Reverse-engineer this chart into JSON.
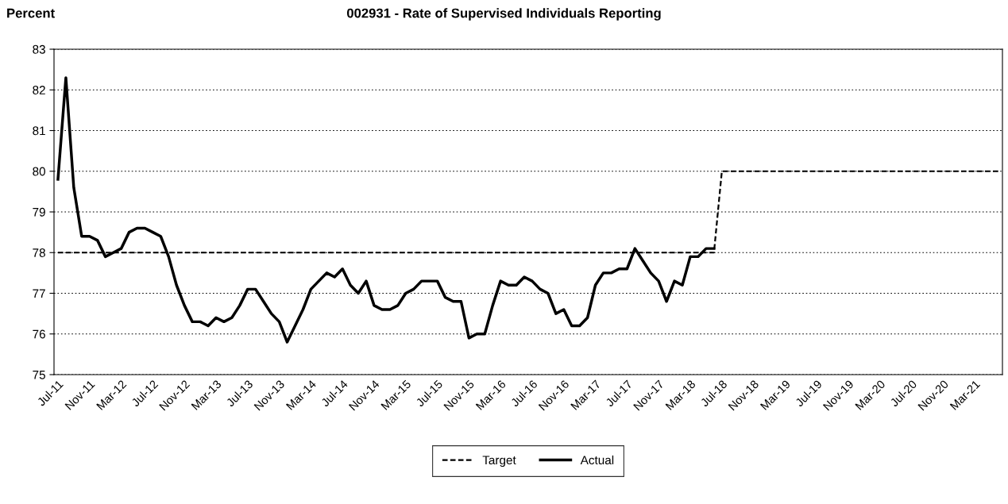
{
  "chart_data": {
    "type": "line",
    "title": "002931 - Rate of Supervised Individuals Reporting",
    "ylabel": "Percent",
    "categories": [
      "Jul-11",
      null,
      null,
      null,
      "Nov-11",
      null,
      null,
      null,
      "Mar-12",
      null,
      null,
      null,
      "Jul-12",
      null,
      null,
      null,
      "Nov-12",
      null,
      null,
      null,
      "Mar-13",
      null,
      null,
      null,
      "Jul-13",
      null,
      null,
      null,
      "Nov-13",
      null,
      null,
      null,
      "Mar-14",
      null,
      null,
      null,
      "Jul-14",
      null,
      null,
      null,
      "Nov-14",
      null,
      null,
      null,
      "Mar-15",
      null,
      null,
      null,
      "Jul-15",
      null,
      null,
      null,
      "Nov-15",
      null,
      null,
      null,
      "Mar-16",
      null,
      null,
      null,
      "Jul-16",
      null,
      null,
      null,
      "Nov-16",
      null,
      null,
      null,
      "Mar-17",
      null,
      null,
      null,
      "Jul-17",
      null,
      null,
      null,
      "Nov-17",
      null,
      null,
      null,
      "Mar-18",
      null,
      null,
      null,
      "Jul-18",
      null,
      null,
      null,
      "Nov-18",
      null,
      null,
      null,
      "Mar-19",
      null,
      null,
      null,
      "Jul-19",
      null,
      null,
      null,
      "Nov-19",
      null,
      null,
      null,
      "Mar-20",
      null,
      null,
      null,
      "Jul-20",
      null,
      null,
      null,
      "Nov-20",
      null,
      null,
      null,
      "Mar-21",
      null,
      null,
      null
    ],
    "series": [
      {
        "name": "Target",
        "color": "#000000",
        "line_style": "dashed",
        "values": [
          78,
          78,
          78,
          78,
          78,
          78,
          78,
          78,
          78,
          78,
          78,
          78,
          78,
          78,
          78,
          78,
          78,
          78,
          78,
          78,
          78,
          78,
          78,
          78,
          78,
          78,
          78,
          78,
          78,
          78,
          78,
          78,
          78,
          78,
          78,
          78,
          78,
          78,
          78,
          78,
          78,
          78,
          78,
          78,
          78,
          78,
          78,
          78,
          78,
          78,
          78,
          78,
          78,
          78,
          78,
          78,
          78,
          78,
          78,
          78,
          78,
          78,
          78,
          78,
          78,
          78,
          78,
          78,
          78,
          78,
          78,
          78,
          78,
          78,
          78,
          78,
          78,
          78,
          78,
          78,
          78,
          78,
          78,
          78,
          80,
          80,
          80,
          80,
          80,
          80,
          80,
          80,
          80,
          80,
          80,
          80,
          80,
          80,
          80,
          80,
          80,
          80,
          80,
          80,
          80,
          80,
          80,
          80,
          80,
          80,
          80,
          80,
          80,
          80,
          80,
          80,
          80,
          80,
          80,
          80
        ]
      },
      {
        "name": "Actual",
        "color": "#000000",
        "line_style": "solid",
        "values": [
          79.8,
          82.3,
          79.6,
          78.4,
          78.4,
          78.3,
          77.9,
          78.0,
          78.1,
          78.5,
          78.6,
          78.6,
          78.5,
          78.4,
          77.9,
          77.2,
          76.7,
          76.3,
          76.3,
          76.2,
          76.4,
          76.3,
          76.4,
          76.7,
          77.1,
          77.1,
          76.8,
          76.5,
          76.3,
          75.8,
          76.2,
          76.6,
          77.1,
          77.3,
          77.5,
          77.4,
          77.6,
          77.2,
          77.0,
          77.3,
          76.7,
          76.6,
          76.6,
          76.7,
          77.0,
          77.1,
          77.3,
          77.3,
          77.3,
          76.9,
          76.8,
          76.8,
          75.9,
          76.0,
          76.0,
          76.7,
          77.3,
          77.2,
          77.2,
          77.4,
          77.3,
          77.1,
          77.0,
          76.5,
          76.6,
          76.2,
          76.2,
          76.4,
          77.2,
          77.5,
          77.5,
          77.6,
          77.6,
          78.1,
          77.8,
          77.5,
          77.3,
          76.8,
          77.3,
          77.2,
          77.9,
          77.9,
          78.1,
          78.1,
          null,
          null,
          null,
          null,
          null,
          null,
          null,
          null,
          null,
          null,
          null,
          null,
          null,
          null,
          null,
          null,
          null,
          null,
          null,
          null,
          null,
          null,
          null,
          null,
          null,
          null,
          null,
          null,
          null,
          null,
          null,
          null,
          null,
          null,
          null,
          null
        ]
      }
    ],
    "ylim": [
      75,
      83
    ],
    "yticks": [
      75,
      76,
      77,
      78,
      79,
      80,
      81,
      82,
      83
    ],
    "grid": "y",
    "legend": "bottom"
  }
}
